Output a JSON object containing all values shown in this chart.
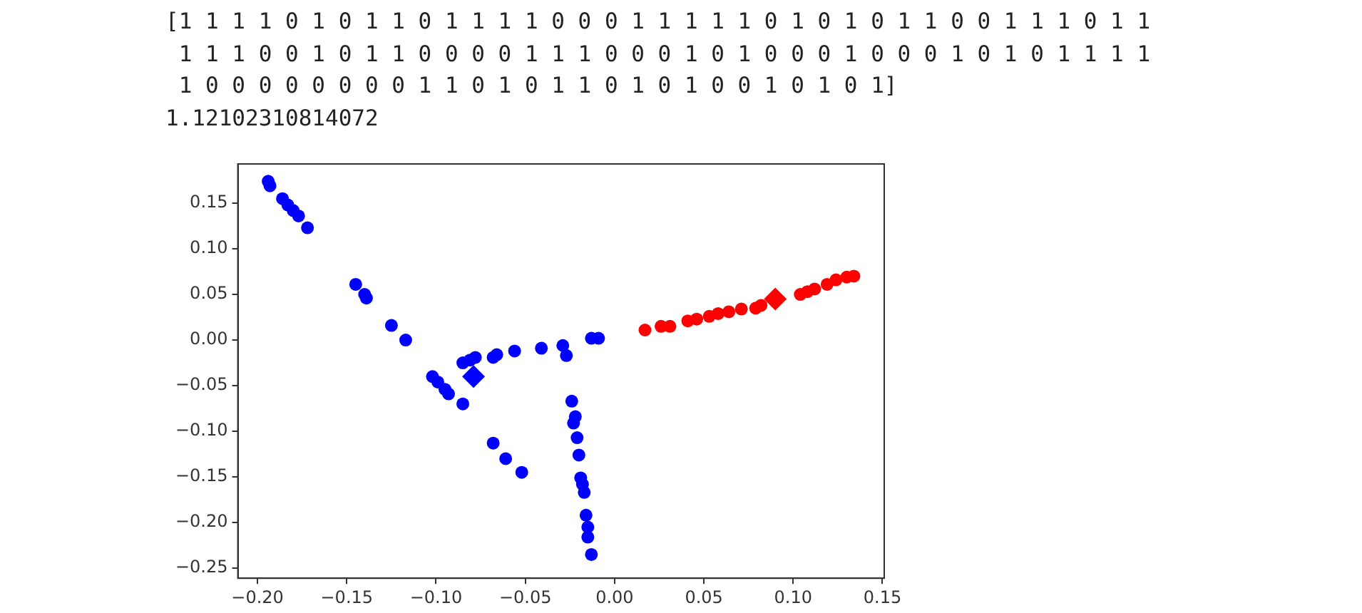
{
  "chart_data": {
    "type": "scatter",
    "annotations": [
      "[1 1 1 1 0 1 0 1 1 0 1 1 1 1 0 0 0 1 1 1 1 1 0 1 0 1 0 1 1 0 0 1 1 1 0 1 1",
      " 1 1 1 0 0 1 0 1 1 0 0 0 0 1 1 1 0 0 0 1 0 1 0 0 0 1 0 0 0 1 0 1 0 1 1 1 1",
      " 1 0 0 0 0 0 0 0 0 1 1 0 1 0 1 1 0 1 0 1 0 0 1 0 1 0 1]",
      "1.12102310814072"
    ],
    "series": [
      {
        "color": "#0000ff",
        "marker": "circle",
        "x": [
          -0.194,
          -0.193,
          -0.186,
          -0.183,
          -0.18,
          -0.177,
          -0.172,
          -0.145,
          -0.14,
          -0.139,
          -0.125,
          -0.117,
          -0.102,
          -0.099,
          -0.095,
          -0.093,
          -0.085,
          -0.085,
          -0.081,
          -0.078,
          -0.068,
          -0.066,
          -0.056,
          -0.041,
          -0.029,
          -0.027,
          -0.013,
          -0.009,
          -0.068,
          -0.061,
          -0.052,
          -0.024,
          -0.022,
          -0.023,
          -0.021,
          -0.02,
          -0.019,
          -0.018,
          -0.017,
          -0.016,
          -0.015,
          -0.015,
          -0.013
        ],
        "values": [
          0.174,
          0.169,
          0.155,
          0.148,
          0.142,
          0.136,
          0.123,
          0.061,
          0.05,
          0.046,
          0.016,
          0.0,
          -0.04,
          -0.046,
          -0.054,
          -0.059,
          -0.07,
          -0.025,
          -0.022,
          -0.019,
          -0.019,
          -0.016,
          -0.012,
          -0.009,
          -0.006,
          -0.017,
          0.002,
          0.002,
          -0.113,
          -0.13,
          -0.145,
          -0.067,
          -0.084,
          -0.091,
          -0.107,
          -0.126,
          -0.151,
          -0.158,
          -0.167,
          -0.192,
          -0.205,
          -0.216,
          -0.235
        ]
      },
      {
        "color": "#ff0000",
        "marker": "circle",
        "x": [
          0.017,
          0.026,
          0.031,
          0.041,
          0.046,
          0.053,
          0.058,
          0.064,
          0.071,
          0.079,
          0.082,
          0.104,
          0.108,
          0.112,
          0.119,
          0.124,
          0.13,
          0.134
        ],
        "values": [
          0.011,
          0.015,
          0.015,
          0.021,
          0.023,
          0.026,
          0.029,
          0.031,
          0.034,
          0.035,
          0.038,
          0.05,
          0.053,
          0.056,
          0.061,
          0.066,
          0.069,
          0.07
        ]
      },
      {
        "color": "#0000ff",
        "marker": "diamond",
        "x": [
          -0.079
        ],
        "values": [
          -0.04
        ]
      },
      {
        "color": "#ff0000",
        "marker": "diamond",
        "x": [
          0.09
        ],
        "values": [
          0.045
        ]
      }
    ],
    "xlim": [
      -0.211,
      0.151
    ],
    "ylim": [
      -0.261,
      0.193
    ],
    "xticks": [
      {
        "value": -0.2,
        "label": "−0.20"
      },
      {
        "value": -0.15,
        "label": "−0.15"
      },
      {
        "value": -0.1,
        "label": "−0.10"
      },
      {
        "value": -0.05,
        "label": "−0.05"
      },
      {
        "value": 0,
        "label": "0.00"
      },
      {
        "value": 0.05,
        "label": "0.05"
      },
      {
        "value": 0.1,
        "label": "0.10"
      },
      {
        "value": 0.15,
        "label": "0.15"
      }
    ],
    "yticks": [
      {
        "value": -0.25,
        "label": "−0.25"
      },
      {
        "value": -0.2,
        "label": "−0.20"
      },
      {
        "value": -0.15,
        "label": "−0.15"
      },
      {
        "value": -0.1,
        "label": "−0.10"
      },
      {
        "value": -0.05,
        "label": "−0.05"
      },
      {
        "value": 0,
        "label": "0.00"
      },
      {
        "value": 0.05,
        "label": "0.05"
      },
      {
        "value": 0.1,
        "label": "0.10"
      },
      {
        "value": 0.15,
        "label": "0.15"
      }
    ],
    "grid": false,
    "legend": false
  }
}
